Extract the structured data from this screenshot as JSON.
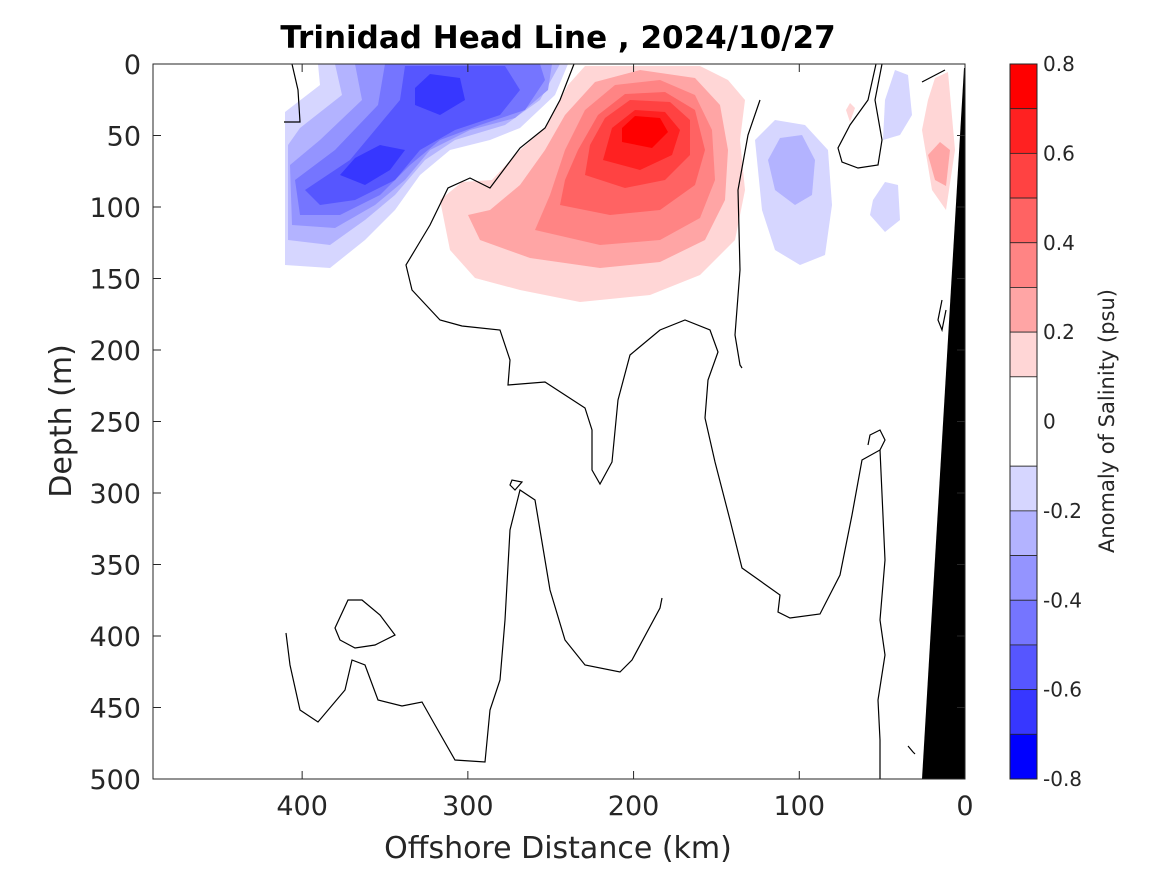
{
  "chart_data": {
    "type": "filled-contour",
    "title": "Trinidad Head Line , 2024/10/27",
    "xlabel": "Offshore Distance (km)",
    "ylabel": "Depth (m)",
    "xlim": [
      490,
      0
    ],
    "ylim": [
      0,
      500
    ],
    "x_direction": "reversed",
    "y_direction": "reversed (depth increasing downward)",
    "x_ticks": [
      400,
      300,
      200,
      100,
      0
    ],
    "y_ticks": [
      0,
      50,
      100,
      150,
      200,
      250,
      300,
      350,
      400,
      450,
      500
    ],
    "colorbar": {
      "label": "Anomaly of Salinity (psu)",
      "ticks": [
        0.8,
        0.6,
        0.4,
        0.2,
        0,
        -0.2,
        -0.4,
        -0.6,
        -0.8
      ],
      "levels": [
        {
          "from": 0.7,
          "to": 0.8,
          "color": "#ff0000"
        },
        {
          "from": 0.6,
          "to": 0.7,
          "color": "#ff2121"
        },
        {
          "from": 0.5,
          "to": 0.6,
          "color": "#ff4242"
        },
        {
          "from": 0.4,
          "to": 0.5,
          "color": "#ff6363"
        },
        {
          "from": 0.3,
          "to": 0.4,
          "color": "#ff8484"
        },
        {
          "from": 0.2,
          "to": 0.3,
          "color": "#ffa5a5"
        },
        {
          "from": 0.1,
          "to": 0.2,
          "color": "#ffd6d6"
        },
        {
          "from": -0.1,
          "to": 0.1,
          "color": "#ffffff"
        },
        {
          "from": -0.2,
          "to": -0.1,
          "color": "#d6d6ff"
        },
        {
          "from": -0.3,
          "to": -0.2,
          "color": "#b3b3ff"
        },
        {
          "from": -0.4,
          "to": -0.3,
          "color": "#9494ff"
        },
        {
          "from": -0.5,
          "to": -0.4,
          "color": "#7575ff"
        },
        {
          "from": -0.6,
          "to": -0.5,
          "color": "#5656ff"
        },
        {
          "from": -0.7,
          "to": -0.6,
          "color": "#3737ff"
        },
        {
          "from": -0.8,
          "to": -0.7,
          "color": "#0000ff"
        }
      ]
    },
    "features": [
      {
        "name": "negative anomaly core",
        "x_km": 320,
        "depth_m": 30,
        "value": -0.6
      },
      {
        "name": "negative anomaly core",
        "x_km": 355,
        "depth_m": 75,
        "value": -0.6
      },
      {
        "name": "positive anomaly core",
        "x_km": 190,
        "depth_m": 45,
        "value": 0.7
      },
      {
        "name": "negative anomaly",
        "x_km": 95,
        "depth_m": 85,
        "value": -0.3
      },
      {
        "name": "positive anomaly",
        "x_km": 15,
        "depth_m": 80,
        "value": 0.3
      },
      {
        "name": "bathymetry (seafloor)",
        "x_km_at_surface": 0,
        "x_km_at_500m": 26,
        "color": "#000000"
      }
    ]
  }
}
